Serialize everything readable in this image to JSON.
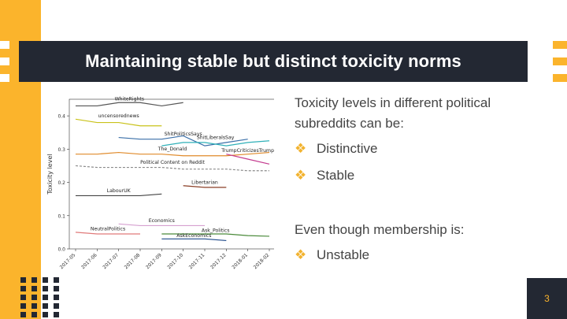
{
  "slide": {
    "title": "Maintaining stable but distinct toxicity norms",
    "intro": "Toxicity levels in different political subreddits can be:",
    "bullets_a": [
      "Distinctive",
      "Stable"
    ],
    "membership_text": "Even though membership is:",
    "bullets_b": [
      "Unstable"
    ],
    "slide_number": "3"
  },
  "chart_data": {
    "type": "line",
    "ylabel": "Toxicity level",
    "xlabel": "",
    "ylim": [
      0,
      0.45
    ],
    "yticks": [
      "0.0",
      "0.1",
      "0.2",
      "0.3",
      "0.4"
    ],
    "x": [
      "2017-05",
      "2017-06",
      "2017-07",
      "2017-08",
      "2017-09",
      "2017-10",
      "2017-11",
      "2017-12",
      "2018-01",
      "2018-02"
    ],
    "series": [
      {
        "name": "WhiteRights",
        "color": "#555555",
        "dash": false,
        "values": [
          0.43,
          0.43,
          0.44,
          0.44,
          0.43,
          0.44,
          null,
          null,
          null,
          null
        ]
      },
      {
        "name": "uncensorednews",
        "color": "#c9c21a",
        "dash": false,
        "values": [
          0.39,
          0.38,
          0.38,
          0.37,
          0.37,
          null,
          null,
          null,
          null,
          null
        ]
      },
      {
        "name": "ShitPoliticsSays",
        "color": "#3a6fa8",
        "dash": false,
        "values": [
          null,
          null,
          0.335,
          0.33,
          0.33,
          0.34,
          0.31,
          0.32,
          0.33,
          null
        ]
      },
      {
        "name": "ShitLiberalsSay",
        "color": "#2fb0b8",
        "dash": false,
        "values": [
          null,
          null,
          null,
          null,
          0.31,
          0.32,
          0.32,
          0.31,
          0.32,
          0.325
        ]
      },
      {
        "name": "The_Donald",
        "color": "#e08a2a",
        "dash": false,
        "values": [
          0.285,
          0.285,
          0.29,
          0.285,
          0.285,
          0.28,
          0.28,
          0.28,
          0.285,
          0.29
        ]
      },
      {
        "name": "TrumpCriticizesTrump",
        "color": "#c43b8f",
        "dash": false,
        "values": [
          null,
          null,
          null,
          null,
          null,
          null,
          null,
          0.285,
          0.27,
          0.255
        ]
      },
      {
        "name": "Political Content on Reddit",
        "color": "#8a8a8a",
        "dash": true,
        "values": [
          0.25,
          0.245,
          0.245,
          0.245,
          0.245,
          0.24,
          0.24,
          0.24,
          0.235,
          0.235
        ]
      },
      {
        "name": "Libertarian",
        "color": "#8a3e25",
        "dash": false,
        "values": [
          null,
          null,
          null,
          null,
          null,
          0.19,
          0.185,
          0.185,
          null,
          null
        ]
      },
      {
        "name": "LabourUK",
        "color": "#444444",
        "dash": false,
        "values": [
          0.16,
          0.16,
          0.16,
          0.16,
          0.165,
          null,
          null,
          null,
          null,
          null
        ]
      },
      {
        "name": "Economics",
        "color": "#d6a0d0",
        "dash": false,
        "values": [
          null,
          null,
          0.075,
          0.07,
          0.07,
          0.07,
          0.07,
          null,
          null,
          null
        ]
      },
      {
        "name": "NeutralPolitics",
        "color": "#e07a7a",
        "dash": false,
        "values": [
          0.05,
          0.045,
          0.045,
          0.045,
          null,
          null,
          null,
          null,
          null,
          null
        ]
      },
      {
        "name": "Ask_Politics",
        "color": "#4a8a3a",
        "dash": false,
        "values": [
          null,
          null,
          null,
          null,
          0.045,
          0.045,
          0.045,
          0.045,
          0.04,
          0.038
        ]
      },
      {
        "name": "AskEconomics",
        "color": "#1f4a8a",
        "dash": false,
        "values": [
          null,
          null,
          null,
          null,
          0.03,
          0.03,
          0.03,
          0.025,
          null,
          null
        ]
      }
    ]
  }
}
